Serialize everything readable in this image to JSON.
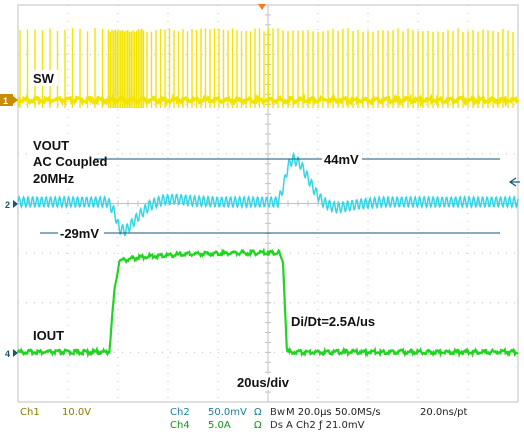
{
  "chart_data": {
    "type": "line",
    "time_per_div_us": 20,
    "xlim_us": [
      0,
      200
    ],
    "grid": true,
    "series": [
      {
        "name": "SW",
        "channel": "1",
        "color": "#f2e400",
        "volts_per_div": 10,
        "description": "switch node pulse train",
        "pulse_times_us": [
          0.8,
          3.8,
          6.8,
          9.8,
          12.8,
          15.8,
          18.8,
          21.8,
          24.8,
          27.8,
          30.8,
          33.8,
          36.2,
          36.9,
          37.6,
          38.3,
          39.0,
          39.7,
          40.4,
          41.1,
          41.8,
          42.5,
          43.2,
          43.9,
          44.6,
          45.3,
          46.0,
          46.7,
          47.4,
          48.1,
          48.8,
          49.5,
          50.2,
          51.6,
          53.4,
          55.2,
          57.0,
          58.8,
          60.6,
          62.4,
          64.2,
          66.0,
          67.8,
          69.6,
          71.4,
          73.2,
          75.0,
          76.8,
          78.6,
          80.4,
          82.2,
          84.0,
          85.8,
          87.6,
          89.4,
          91.2,
          93.0,
          94.8,
          96.6,
          98.4,
          100.2,
          102.0,
          104.0,
          106.0,
          108.0,
          110.0,
          112.0,
          114.0,
          116.0,
          118.0,
          120.0,
          122.0,
          124.0,
          126.0,
          128.0,
          130.0,
          132.0,
          134.0,
          136.0,
          138.0,
          140.0,
          142.0,
          144.0,
          146.0,
          148.0,
          150.0,
          152.0,
          154.0,
          156.0,
          158.0,
          160.0,
          162.0,
          164.0,
          166.0,
          168.0,
          170.0,
          172.0,
          174.0,
          176.0,
          178.0,
          180.0,
          182.0,
          184.0,
          186.0,
          188.0,
          190.0,
          192.0,
          194.0,
          196.0,
          198.0
        ]
      },
      {
        "name": "VOUT",
        "channel": "2",
        "color": "#33d6e6",
        "volts_per_div_mV": 50,
        "coupling": "AC Coupled",
        "bandwidth": "20MHz",
        "ripple_mV": 10,
        "points_us_mV": [
          [
            0,
            0
          ],
          [
            36,
            0
          ],
          [
            38.5,
            -10
          ],
          [
            40.5,
            -27
          ],
          [
            43,
            -29
          ],
          [
            45.5,
            -22
          ],
          [
            49,
            -12
          ],
          [
            53,
            -3
          ],
          [
            58,
            2
          ],
          [
            63,
            3
          ],
          [
            70,
            1
          ],
          [
            80,
            0
          ],
          [
            90,
            0
          ],
          [
            100,
            0
          ],
          [
            104,
            0
          ],
          [
            106,
            14
          ],
          [
            108,
            36
          ],
          [
            110,
            44
          ],
          [
            113,
            38
          ],
          [
            116,
            24
          ],
          [
            119,
            10
          ],
          [
            122,
            0
          ],
          [
            125,
            -4
          ],
          [
            128,
            -6
          ],
          [
            132,
            -4
          ],
          [
            137,
            -2
          ],
          [
            145,
            0
          ],
          [
            160,
            0
          ],
          [
            180,
            0
          ],
          [
            200,
            0
          ]
        ]
      },
      {
        "name": "IOUT",
        "channel": "4",
        "color": "#22d422",
        "amps_per_div": 5,
        "points_us_A": [
          [
            0,
            0
          ],
          [
            36.5,
            0
          ],
          [
            38.5,
            6
          ],
          [
            40.5,
            9.2
          ],
          [
            50,
            9.6
          ],
          [
            70,
            9.9
          ],
          [
            90,
            10
          ],
          [
            104.5,
            10
          ],
          [
            106,
            9
          ],
          [
            107.6,
            0
          ],
          [
            130,
            0
          ],
          [
            200,
            0
          ]
        ]
      }
    ],
    "annotations": {
      "sw_label": "SW",
      "vout_label": "VOUT",
      "coupling_label": "AC Coupled",
      "bandwidth_label": "20MHz",
      "vout_peak": "44mV",
      "vout_dip": "-29mV",
      "iout_label": "IOUT",
      "slew_rate": "Di/Dt=2.5A/us",
      "timebase": "20us/div"
    },
    "markers": {
      "ch1": "1",
      "ch2": "2",
      "ch4": "4"
    },
    "status_bar": {
      "ch1_name": "Ch1",
      "ch1_scale": "10.0V",
      "ch2_name": "Ch2",
      "ch2_scale": "50.0mV",
      "ch2_ohm": "Ω",
      "bw_label": "Bw",
      "horiz": "M 20.0µs 50.0MS/s",
      "pts": "20.0ns/pt",
      "ch4_name": "Ch4",
      "ch4_scale": "5.0A",
      "ch4_ohm": "Ω",
      "ds_label": "Ds",
      "trigger": "A  Ch2  ƒ  21.0mV"
    },
    "colors": {
      "grid": "#c2c2c2",
      "annotation_line": "#15557a",
      "trigger_marker": "#ff7a1a"
    }
  }
}
